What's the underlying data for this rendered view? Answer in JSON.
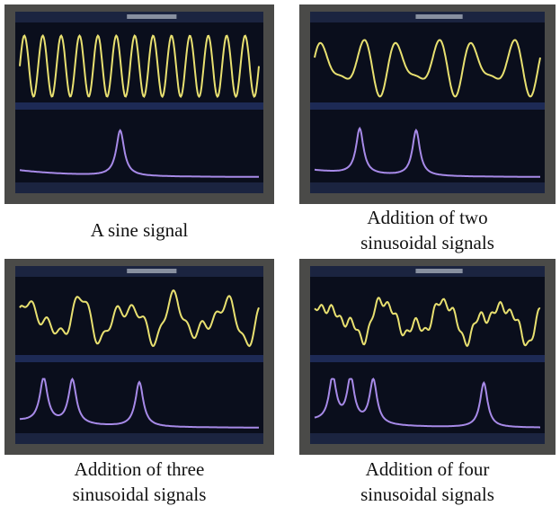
{
  "panels": [
    {
      "caption": [
        "A sine signal"
      ]
    },
    {
      "caption": [
        "Addition of two",
        "sinusoidal signals"
      ]
    },
    {
      "caption": [
        "Addition of three",
        "sinusoidal signals"
      ]
    },
    {
      "caption": [
        "Addition of four",
        "sinusoidal signals"
      ]
    }
  ]
}
